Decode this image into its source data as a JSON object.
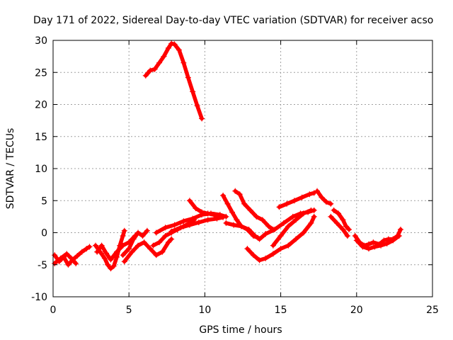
{
  "chart_data": {
    "type": "scatter",
    "title": "Day 171 of 2022, Sidereal Day-to-day VTEC variation (SDTVAR) for receiver acso",
    "xlabel": "GPS time / hours",
    "ylabel": "SDTVAR / TECUs",
    "xlim": [
      0,
      25
    ],
    "ylim": [
      -10,
      30
    ],
    "xticks": [
      0,
      5,
      10,
      15,
      20,
      25
    ],
    "yticks": [
      -10,
      -5,
      0,
      5,
      10,
      15,
      20,
      25,
      30
    ],
    "xtick_labels": [
      "0",
      "5",
      "10",
      "15",
      "20",
      "25"
    ],
    "ytick_labels": [
      "-10",
      "-5",
      "0",
      "5",
      "10",
      "15",
      "20",
      "25",
      "30"
    ],
    "grid": true,
    "marker": "+",
    "color": "#ff0000",
    "series": [
      {
        "name": "s1",
        "x": [
          0.1,
          0.4,
          0.7,
          1.0,
          1.3,
          1.6,
          1.9,
          2.2,
          2.4
        ],
        "y": [
          -3.5,
          -4.5,
          -3.8,
          -5.0,
          -4.2,
          -3.6,
          -3.0,
          -2.5,
          -2.2
        ]
      },
      {
        "name": "s2",
        "x": [
          0.1,
          0.5,
          0.9,
          1.2,
          1.5
        ],
        "y": [
          -4.8,
          -4.0,
          -3.3,
          -4.0,
          -4.8
        ]
      },
      {
        "name": "s3",
        "x": [
          2.8,
          3.1,
          3.4,
          3.6,
          3.8,
          4.0,
          4.2,
          4.4,
          4.6,
          4.7
        ],
        "y": [
          -2.0,
          -3.0,
          -4.0,
          -5.0,
          -5.6,
          -5.2,
          -3.8,
          -2.0,
          -0.5,
          0.3
        ]
      },
      {
        "name": "s4",
        "x": [
          2.9,
          3.2,
          3.5,
          3.8,
          4.2,
          4.6,
          5.0,
          5.4
        ],
        "y": [
          -3.0,
          -2.0,
          -3.2,
          -4.2,
          -3.0,
          -2.0,
          -1.5,
          -0.5
        ]
      },
      {
        "name": "s5",
        "x": [
          4.6,
          5.0,
          5.3,
          5.6,
          5.9,
          6.2
        ],
        "y": [
          -3.5,
          -2.5,
          -1.0,
          0.0,
          -0.5,
          0.3
        ]
      },
      {
        "name": "s6",
        "x": [
          4.7,
          5.2,
          5.6,
          6.0,
          6.4,
          6.8,
          7.2,
          7.6,
          7.8
        ],
        "y": [
          -4.5,
          -3.0,
          -2.0,
          -1.5,
          -2.5,
          -3.5,
          -3.0,
          -1.5,
          -1.0
        ]
      },
      {
        "name": "s7",
        "x": [
          6.6,
          7.0,
          7.4,
          7.8,
          8.2,
          8.6,
          9.0,
          9.3
        ],
        "y": [
          -2.0,
          -1.5,
          -0.5,
          0.0,
          0.5,
          1.0,
          1.5,
          2.0
        ]
      },
      {
        "name": "s8",
        "x": [
          6.8,
          7.4,
          8.0,
          8.6,
          9.2,
          9.8,
          10.4,
          11.0,
          11.4
        ],
        "y": [
          0.0,
          0.8,
          1.2,
          1.8,
          2.2,
          2.8,
          3.0,
          2.8,
          2.5
        ]
      },
      {
        "name": "s9",
        "x": [
          7.8,
          8.4,
          9.0,
          9.6,
          10.2,
          10.8,
          11.2
        ],
        "y": [
          0.2,
          0.8,
          1.2,
          1.6,
          2.0,
          2.2,
          2.4
        ]
      },
      {
        "name": "s10",
        "x": [
          9.0,
          9.4,
          9.8,
          10.2,
          10.6,
          11.0
        ],
        "y": [
          5.0,
          3.8,
          3.2,
          3.0,
          2.8,
          2.5
        ]
      },
      {
        "name": "s11",
        "x": [
          11.2,
          11.5,
          11.8,
          12.1,
          12.4,
          12.8,
          13.2,
          13.5
        ],
        "y": [
          5.8,
          4.5,
          3.2,
          2.0,
          1.0,
          0.5,
          -0.5,
          -0.8
        ]
      },
      {
        "name": "s12",
        "x": [
          11.4,
          11.9,
          12.4,
          12.9,
          13.3,
          13.6,
          14.0
        ],
        "y": [
          1.5,
          1.2,
          1.0,
          0.5,
          -0.5,
          -1.0,
          -0.2
        ]
      },
      {
        "name": "s13",
        "x": [
          12.0,
          12.3,
          12.6,
          13.0,
          13.4,
          13.8,
          14.2,
          14.5
        ],
        "y": [
          6.5,
          6.0,
          4.5,
          3.5,
          2.5,
          2.0,
          1.0,
          0.5
        ]
      },
      {
        "name": "s14",
        "x": [
          12.8,
          13.2,
          13.6,
          14.0,
          14.5,
          15.0,
          15.5,
          16.0,
          16.5,
          17.0,
          17.2
        ],
        "y": [
          -2.5,
          -3.5,
          -4.3,
          -4.0,
          -3.3,
          -2.5,
          -2.0,
          -1.0,
          0.0,
          1.5,
          2.5
        ]
      },
      {
        "name": "s15",
        "x": [
          14.5,
          15.0,
          15.5,
          16.0,
          16.5,
          17.0
        ],
        "y": [
          -2.0,
          -0.5,
          1.0,
          2.0,
          3.0,
          3.5
        ]
      },
      {
        "name": "s16",
        "x": [
          14.0,
          14.6,
          15.2,
          15.8,
          16.3,
          16.8,
          17.2
        ],
        "y": [
          -0.2,
          0.5,
          1.5,
          2.5,
          3.0,
          3.2,
          3.5
        ]
      },
      {
        "name": "s17",
        "x": [
          14.9,
          15.4,
          15.9,
          16.4,
          16.9,
          17.2
        ],
        "y": [
          4.0,
          4.5,
          5.0,
          5.5,
          6.0,
          6.2
        ]
      },
      {
        "name": "s18",
        "x": [
          17.4,
          17.7,
          18.0,
          18.3
        ],
        "y": [
          6.5,
          5.5,
          4.8,
          4.5
        ]
      },
      {
        "name": "s19",
        "x": [
          18.5,
          18.8,
          19.1,
          19.3,
          19.5
        ],
        "y": [
          3.5,
          3.0,
          2.0,
          1.0,
          0.5
        ]
      },
      {
        "name": "s20",
        "x": [
          18.3,
          18.7,
          19.1,
          19.4
        ],
        "y": [
          2.5,
          1.5,
          0.5,
          -0.5
        ]
      },
      {
        "name": "s21",
        "x": [
          19.9,
          20.2,
          20.5,
          20.8,
          21.1,
          21.5,
          21.8,
          22.1,
          22.4,
          22.7,
          22.9
        ],
        "y": [
          -0.5,
          -1.5,
          -2.0,
          -1.8,
          -1.5,
          -1.8,
          -1.2,
          -1.0,
          -1.0,
          -0.5,
          0.5
        ]
      },
      {
        "name": "s22",
        "x": [
          20.0,
          20.4,
          20.8,
          21.2,
          21.6,
          22.0,
          22.4,
          22.8
        ],
        "y": [
          -1.2,
          -2.2,
          -2.5,
          -2.2,
          -2.0,
          -1.7,
          -1.2,
          -0.5
        ]
      },
      {
        "name": "s23",
        "x": [
          6.1,
          6.4,
          6.7,
          7.0,
          7.3,
          7.6,
          7.8,
          8.0,
          8.3,
          8.6,
          8.9,
          9.2,
          9.5,
          9.8
        ],
        "y": [
          24.5,
          25.3,
          25.5,
          26.5,
          27.5,
          28.8,
          29.5,
          29.4,
          28.5,
          26.5,
          24.2,
          22.0,
          19.8,
          17.8
        ]
      }
    ]
  }
}
